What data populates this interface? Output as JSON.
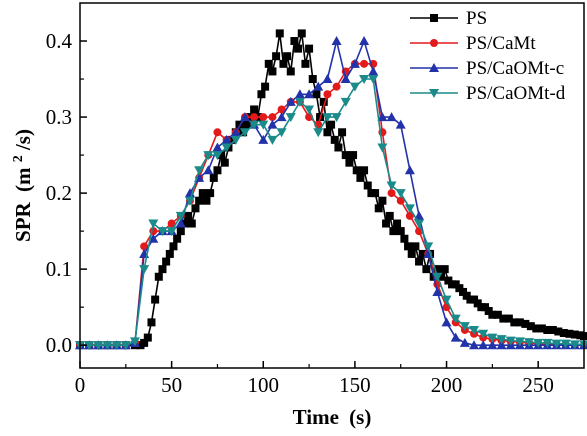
{
  "chart_data": {
    "type": "line",
    "xlabel": "Time",
    "xlabel_unit": "(s)",
    "ylabel": "SPR",
    "ylabel_unit_pre": "(m",
    "ylabel_unit_sup": "2",
    "ylabel_unit_post": "/s)",
    "xlim": [
      0,
      275
    ],
    "ylim": [
      -0.03,
      0.45
    ],
    "xticks": [
      0,
      50,
      100,
      150,
      200,
      250
    ],
    "yticks": [
      0.0,
      0.1,
      0.2,
      0.3,
      0.4
    ],
    "ytick_labels": [
      "0.0",
      "0.1",
      "0.2",
      "0.3",
      "0.4"
    ],
    "grid": false,
    "legend_position": "top-right",
    "series": [
      {
        "name": "PS",
        "color": "#000000",
        "marker": "square",
        "x": [
          0,
          5,
          10,
          15,
          20,
          25,
          30,
          33,
          35,
          37,
          39,
          41,
          43,
          45,
          47,
          49,
          51,
          53,
          55,
          57,
          59,
          61,
          63,
          65,
          67,
          69,
          71,
          73,
          75,
          77,
          79,
          81,
          83,
          85,
          87,
          89,
          91,
          93,
          95,
          97,
          99,
          101,
          103,
          105,
          107,
          109,
          111,
          113,
          115,
          117,
          119,
          121,
          123,
          125,
          127,
          129,
          131,
          133,
          135,
          137,
          139,
          141,
          143,
          145,
          147,
          149,
          151,
          153,
          155,
          157,
          159,
          161,
          163,
          165,
          167,
          169,
          171,
          173,
          175,
          177,
          179,
          181,
          183,
          185,
          187,
          189,
          191,
          193,
          195,
          197,
          199,
          201,
          203,
          205,
          207,
          209,
          211,
          213,
          215,
          217,
          219,
          221,
          223,
          225,
          228,
          231,
          234,
          237,
          240,
          243,
          246,
          249,
          252,
          255,
          258,
          261,
          264,
          267,
          270,
          273,
          275
        ],
        "y": [
          0.0,
          0.0,
          0.0,
          0.0,
          0.0,
          0.0,
          0.0,
          0.0,
          0.003,
          0.01,
          0.03,
          0.06,
          0.09,
          0.1,
          0.11,
          0.12,
          0.13,
          0.14,
          0.15,
          0.16,
          0.17,
          0.16,
          0.18,
          0.19,
          0.2,
          0.19,
          0.2,
          0.22,
          0.23,
          0.25,
          0.24,
          0.26,
          0.27,
          0.28,
          0.29,
          0.28,
          0.29,
          0.3,
          0.31,
          0.3,
          0.33,
          0.34,
          0.37,
          0.36,
          0.38,
          0.41,
          0.37,
          0.38,
          0.36,
          0.4,
          0.39,
          0.41,
          0.37,
          0.39,
          0.35,
          0.33,
          0.3,
          0.32,
          0.28,
          0.29,
          0.27,
          0.26,
          0.28,
          0.25,
          0.24,
          0.25,
          0.23,
          0.22,
          0.23,
          0.21,
          0.2,
          0.2,
          0.18,
          0.19,
          0.16,
          0.17,
          0.15,
          0.16,
          0.15,
          0.14,
          0.13,
          0.12,
          0.13,
          0.11,
          0.12,
          0.1,
          0.12,
          0.09,
          0.1,
          0.09,
          0.1,
          0.085,
          0.08,
          0.08,
          0.075,
          0.07,
          0.065,
          0.06,
          0.06,
          0.055,
          0.05,
          0.05,
          0.045,
          0.04,
          0.04,
          0.035,
          0.035,
          0.03,
          0.03,
          0.028,
          0.025,
          0.022,
          0.022,
          0.02,
          0.02,
          0.018,
          0.016,
          0.015,
          0.014,
          0.013,
          0.012
        ]
      },
      {
        "name": "PS/CaMt",
        "color": "#e31a1c",
        "marker": "circle",
        "x": [
          0,
          5,
          10,
          15,
          20,
          25,
          30,
          35,
          40,
          45,
          50,
          55,
          60,
          65,
          70,
          75,
          80,
          85,
          90,
          95,
          100,
          105,
          110,
          115,
          120,
          125,
          130,
          135,
          140,
          145,
          150,
          155,
          160,
          165,
          170,
          175,
          180,
          185,
          190,
          195,
          200,
          205,
          210,
          215,
          220,
          225,
          230,
          235,
          240,
          245,
          250,
          255,
          260,
          265,
          270,
          275
        ],
        "y": [
          0.0,
          0.0,
          0.0,
          0.0,
          0.0,
          0.0,
          0.003,
          0.13,
          0.15,
          0.15,
          0.16,
          0.17,
          0.19,
          0.22,
          0.25,
          0.28,
          0.27,
          0.28,
          0.3,
          0.3,
          0.3,
          0.3,
          0.31,
          0.32,
          0.32,
          0.3,
          0.29,
          0.33,
          0.34,
          0.36,
          0.37,
          0.37,
          0.37,
          0.28,
          0.2,
          0.19,
          0.17,
          0.15,
          0.12,
          0.08,
          0.05,
          0.03,
          0.02,
          0.015,
          0.01,
          0.008,
          0.006,
          0.005,
          0.004,
          0.003,
          0.002,
          0.002,
          0.001,
          0.001,
          0.0,
          0.0
        ]
      },
      {
        "name": "PS/CaOMt-c",
        "color": "#2233aa",
        "marker": "triangle-up",
        "x": [
          0,
          5,
          10,
          15,
          20,
          25,
          30,
          35,
          40,
          45,
          50,
          55,
          60,
          65,
          70,
          75,
          80,
          85,
          90,
          95,
          100,
          105,
          110,
          115,
          120,
          125,
          130,
          135,
          140,
          145,
          150,
          155,
          160,
          165,
          170,
          175,
          180,
          185,
          190,
          195,
          200,
          205,
          210,
          215,
          220,
          225,
          230,
          235,
          240,
          245,
          250,
          255,
          260,
          265,
          270,
          275
        ],
        "y": [
          0.0,
          0.0,
          0.0,
          0.0,
          0.0,
          0.0,
          0.003,
          0.12,
          0.14,
          0.15,
          0.15,
          0.16,
          0.2,
          0.22,
          0.23,
          0.26,
          0.27,
          0.28,
          0.3,
          0.29,
          0.27,
          0.29,
          0.3,
          0.32,
          0.33,
          0.33,
          0.34,
          0.35,
          0.4,
          0.35,
          0.37,
          0.4,
          0.36,
          0.3,
          0.3,
          0.29,
          0.23,
          0.17,
          0.12,
          0.07,
          0.03,
          0.01,
          0.003,
          0.0,
          0.0,
          0.0,
          0.0,
          0.0,
          0.0,
          0.0,
          0.0,
          0.0,
          0.0,
          0.0,
          0.0,
          0.0
        ]
      },
      {
        "name": "PS/CaOMt-d",
        "color": "#1a8a8a",
        "marker": "triangle-down",
        "x": [
          0,
          5,
          10,
          15,
          20,
          25,
          30,
          35,
          40,
          45,
          50,
          55,
          60,
          65,
          70,
          75,
          80,
          85,
          90,
          95,
          100,
          105,
          110,
          115,
          120,
          125,
          130,
          135,
          140,
          145,
          150,
          155,
          160,
          165,
          170,
          175,
          180,
          185,
          190,
          195,
          200,
          205,
          210,
          215,
          220,
          225,
          230,
          235,
          240,
          245,
          250,
          255,
          260,
          265,
          270,
          275
        ],
        "y": [
          0.0,
          0.0,
          0.0,
          0.0,
          0.0,
          0.0,
          0.005,
          0.1,
          0.16,
          0.15,
          0.15,
          0.17,
          0.19,
          0.23,
          0.25,
          0.25,
          0.26,
          0.27,
          0.28,
          0.29,
          0.29,
          0.27,
          0.28,
          0.3,
          0.32,
          0.31,
          0.28,
          0.3,
          0.3,
          0.32,
          0.34,
          0.35,
          0.35,
          0.26,
          0.21,
          0.2,
          0.18,
          0.16,
          0.13,
          0.09,
          0.06,
          0.035,
          0.025,
          0.02,
          0.015,
          0.01,
          0.008,
          0.006,
          0.005,
          0.004,
          0.003,
          0.003,
          0.002,
          0.002,
          0.001,
          0.001
        ]
      }
    ]
  }
}
